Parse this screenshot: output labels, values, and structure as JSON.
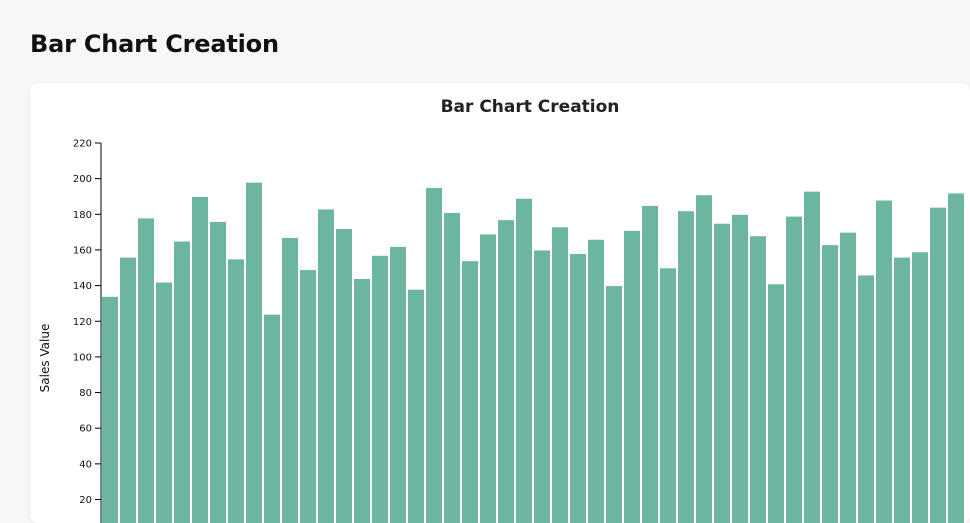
{
  "page": {
    "title": "Bar Chart Creation"
  },
  "colors": {
    "bar": "#6cb5a0",
    "axis": "#000000",
    "background": "#f6f7f9",
    "card": "#ffffff"
  },
  "chart_data": {
    "type": "bar",
    "title": "Bar Chart Creation",
    "xlabel": "",
    "ylabel": "Sales Value",
    "ylim": [
      0,
      220
    ],
    "yticks": [
      20,
      40,
      60,
      80,
      100,
      120,
      140,
      160,
      180,
      200,
      220
    ],
    "grid": false,
    "values": [
      134,
      156,
      178,
      142,
      165,
      190,
      176,
      155,
      198,
      124,
      167,
      149,
      183,
      172,
      144,
      157,
      162,
      138,
      195,
      181,
      154,
      169,
      177,
      189,
      160,
      173,
      158,
      166,
      140,
      171,
      185,
      150,
      182,
      191,
      175,
      180,
      168,
      141,
      179,
      193,
      163,
      170,
      146,
      188,
      156,
      159,
      184,
      192
    ]
  }
}
